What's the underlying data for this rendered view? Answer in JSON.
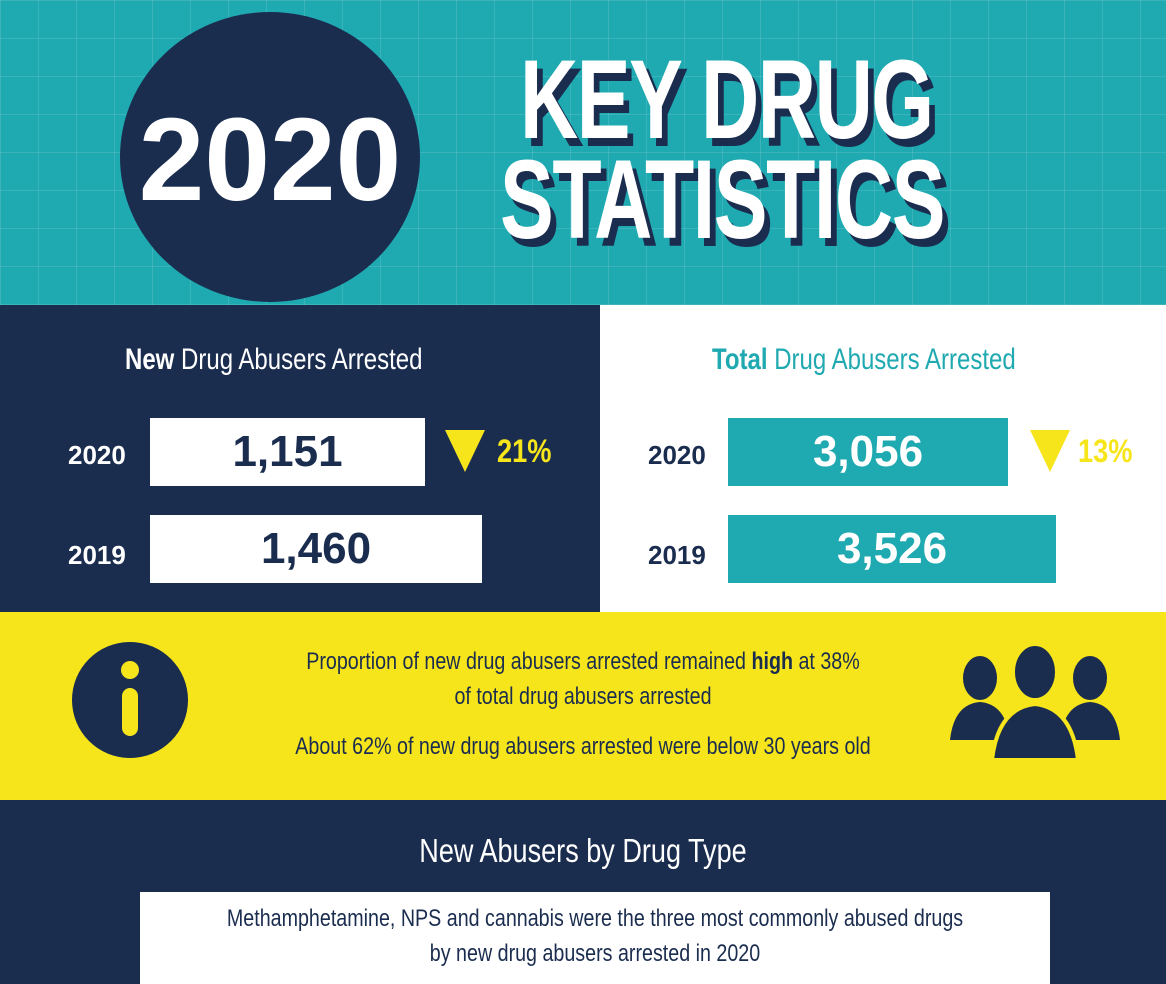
{
  "header": {
    "year": "2020",
    "title_line1": "KEY DRUG",
    "title_line2": "STATISTICS"
  },
  "new_arrested": {
    "title_bold": "New",
    "title_rest": "Drug Abusers Arrested",
    "rows": [
      {
        "year": "2020",
        "value": "1,151",
        "change": "21%"
      },
      {
        "year": "2019",
        "value": "1,460"
      }
    ]
  },
  "total_arrested": {
    "title_bold": "Total",
    "title_rest": "Drug Abusers Arrested",
    "rows": [
      {
        "year": "2020",
        "value": "3,056",
        "change": "13%"
      },
      {
        "year": "2019",
        "value": "3,526"
      }
    ]
  },
  "info": {
    "line1_start": "Proportion of new drug abusers arrested remained",
    "line1_bold": "high",
    "line1_end": "at 38%",
    "line2": "of total drug abusers arrested",
    "line3": "About 62% of new drug abusers arrested were below 30 years old"
  },
  "drug_type": {
    "title": "New Abusers by Drug Type",
    "note_line1": "Methamphetamine, NPS and cannabis were the three most commonly abused drugs",
    "note_line2": "by new drug abusers arrested in 2020"
  }
}
